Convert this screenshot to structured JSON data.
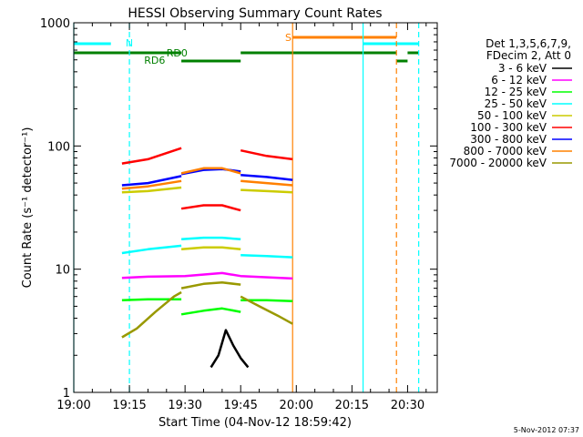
{
  "chart_data": {
    "type": "line",
    "title": "HESSI Observing Summary Count Rates",
    "xlabel": "Start Time (04-Nov-12 18:59:42)",
    "ylabel": "Count Rate (s⁻¹ detector⁻¹)",
    "yscale": "log",
    "ylim": [
      1,
      1000
    ],
    "xlim": [
      "19:00",
      "20:38"
    ],
    "x_ticks": [
      "19:00",
      "19:15",
      "19:30",
      "19:45",
      "20:00",
      "20:15",
      "20:30"
    ],
    "y_ticks": [
      "1",
      "10",
      "100",
      "1000"
    ],
    "stamp": "5-Nov-2012 07:37",
    "legend_header": [
      "Det 1,3,5,6,7,9,",
      "FDecim 2, Att 0"
    ],
    "series": [
      {
        "name": "3 - 6 keV",
        "color": "#000000",
        "segments": [
          {
            "x": [
              "19:37",
              "19:39",
              "19:41",
              "19:43",
              "19:45",
              "19:47"
            ],
            "y": [
              1.6,
              2.0,
              3.2,
              2.4,
              1.9,
              1.6
            ]
          }
        ]
      },
      {
        "name": "6 - 12 keV",
        "color": "#ff00ff",
        "segments": [
          {
            "x": [
              "19:13",
              "19:20",
              "19:30",
              "19:40",
              "19:45",
              "19:59"
            ],
            "y": [
              8.5,
              8.7,
              8.8,
              9.3,
              8.8,
              8.4
            ]
          }
        ]
      },
      {
        "name": "12 - 25 keV",
        "color": "#00ff00",
        "segments": [
          {
            "x": [
              "19:13",
              "19:20",
              "19:29"
            ],
            "y": [
              5.6,
              5.7,
              5.7
            ]
          },
          {
            "x": [
              "19:29",
              "19:35",
              "19:40",
              "19:45"
            ],
            "y": [
              4.3,
              4.6,
              4.8,
              4.5
            ]
          },
          {
            "x": [
              "19:45",
              "19:52",
              "19:59"
            ],
            "y": [
              5.6,
              5.6,
              5.5
            ]
          }
        ]
      },
      {
        "name": "25 - 50 keV",
        "color": "#00ffff",
        "segments": [
          {
            "x": [
              "19:13",
              "19:20",
              "19:29"
            ],
            "y": [
              13.5,
              14.5,
              15.5
            ]
          },
          {
            "x": [
              "19:29",
              "19:35",
              "19:40",
              "19:45"
            ],
            "y": [
              17.5,
              18.0,
              18.0,
              17.5
            ]
          },
          {
            "x": [
              "19:45",
              "19:52",
              "19:59"
            ],
            "y": [
              13.0,
              12.8,
              12.5
            ]
          }
        ]
      },
      {
        "name": "50 - 100 keV",
        "color": "#cccc00",
        "segments": [
          {
            "x": [
              "19:13",
              "19:20",
              "19:29"
            ],
            "y": [
              42,
              43,
              46
            ]
          },
          {
            "x": [
              "19:29",
              "19:35",
              "19:40",
              "19:45"
            ],
            "y": [
              14.5,
              15,
              15,
              14.5
            ]
          },
          {
            "x": [
              "19:45",
              "19:52",
              "19:59"
            ],
            "y": [
              44,
              43,
              42
            ]
          }
        ]
      },
      {
        "name": "100 - 300 keV",
        "color": "#ff0000",
        "segments": [
          {
            "x": [
              "19:13",
              "19:20",
              "19:29"
            ],
            "y": [
              72,
              78,
              96
            ]
          },
          {
            "x": [
              "19:29",
              "19:35",
              "19:40",
              "19:45"
            ],
            "y": [
              31,
              33,
              33,
              30
            ]
          },
          {
            "x": [
              "19:45",
              "19:52",
              "19:59"
            ],
            "y": [
              92,
              83,
              78
            ]
          }
        ]
      },
      {
        "name": "300 - 800 keV",
        "color": "#0000ff",
        "segments": [
          {
            "x": [
              "19:13",
              "19:20",
              "19:29"
            ],
            "y": [
              48,
              50,
              57
            ]
          },
          {
            "x": [
              "19:29",
              "19:35",
              "19:40",
              "19:45"
            ],
            "y": [
              59,
              64,
              65,
              62
            ]
          },
          {
            "x": [
              "19:45",
              "19:52",
              "19:59"
            ],
            "y": [
              58,
              56,
              53
            ]
          }
        ]
      },
      {
        "name": "800 - 7000 keV",
        "color": "#ff8000",
        "segments": [
          {
            "x": [
              "19:13",
              "19:20",
              "19:29"
            ],
            "y": [
              45,
              47,
              52
            ]
          },
          {
            "x": [
              "19:29",
              "19:35",
              "19:40",
              "19:45"
            ],
            "y": [
              60,
              66,
              66,
              60
            ]
          },
          {
            "x": [
              "19:45",
              "19:52",
              "19:59"
            ],
            "y": [
              52,
              50,
              48
            ]
          }
        ]
      },
      {
        "name": "7000 - 20000 keV",
        "color": "#999900",
        "segments": [
          {
            "x": [
              "19:13",
              "19:17",
              "19:22",
              "19:27",
              "19:29"
            ],
            "y": [
              2.8,
              3.3,
              4.5,
              6.0,
              6.5
            ]
          },
          {
            "x": [
              "19:29",
              "19:35",
              "19:40",
              "19:45"
            ],
            "y": [
              7.0,
              7.6,
              7.8,
              7.5
            ]
          },
          {
            "x": [
              "19:45",
              "19:50",
              "19:55",
              "19:59"
            ],
            "y": [
              6.0,
              5.0,
              4.2,
              3.6
            ]
          }
        ]
      }
    ],
    "flags": [
      {
        "label": "N",
        "color": "#00ffff",
        "level": 1,
        "ranges": [
          [
            "19:00",
            "19:10"
          ],
          [
            "20:18",
            "20:33"
          ]
        ]
      },
      {
        "label": "S",
        "color": "#ff8000",
        "level": 0,
        "ranges": [
          [
            "19:59",
            "20:27"
          ]
        ]
      },
      {
        "label": "RD0",
        "color": "#008000",
        "level": 2,
        "ranges": [
          [
            "19:00",
            "19:29"
          ],
          [
            "19:45",
            "20:27"
          ],
          [
            "20:30",
            "20:33"
          ]
        ]
      },
      {
        "label": "RD6",
        "color": "#008000",
        "level": 3,
        "ranges": [
          [
            "19:29",
            "19:45"
          ],
          [
            "20:27",
            "20:30"
          ]
        ]
      }
    ],
    "vlines": [
      {
        "x": "19:15",
        "color": "#00ffff",
        "style": "dashed"
      },
      {
        "x": "20:27",
        "color": "#ff8000",
        "style": "dashed"
      },
      {
        "x": "20:33",
        "color": "#00ffff",
        "style": "dashed"
      },
      {
        "x": "19:59",
        "color": "#ff8000",
        "style": "solid"
      },
      {
        "x": "20:18",
        "color": "#00ffff",
        "style": "solid"
      },
      {
        "x": "19:00",
        "color": "#00ffff",
        "style": "solid"
      }
    ],
    "grid": false,
    "legend_position": "right"
  }
}
